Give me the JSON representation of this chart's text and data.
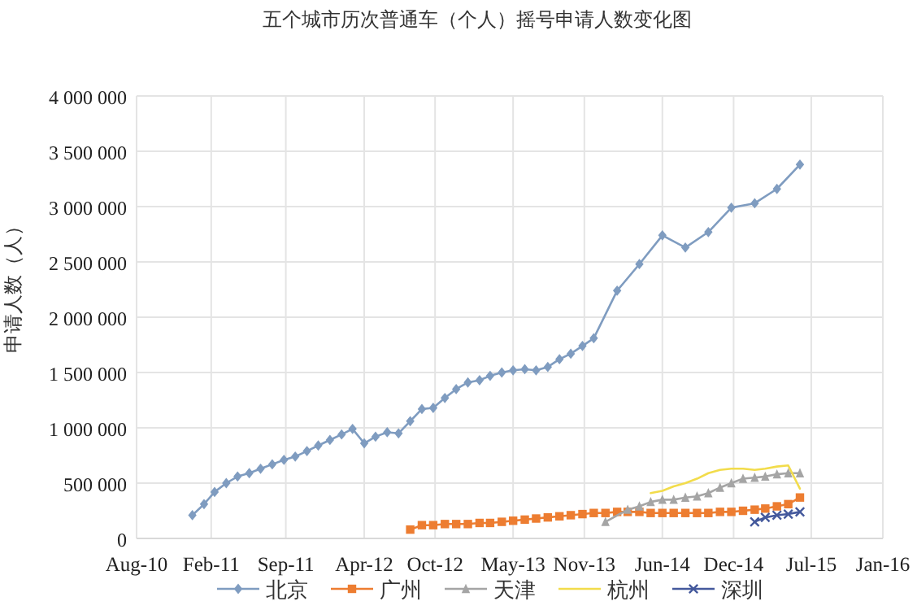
{
  "chart_data": {
    "type": "line",
    "title": "五个城市历次普通车（个人）摇号申请人数变化图",
    "ylabel": "申请人数（人）",
    "xlim": [
      "2010-08-06",
      "2016-01-07"
    ],
    "xticks": [
      {
        "value": "2010-08-06",
        "label": "Aug-10"
      },
      {
        "value": "2011-02-20",
        "label": "Feb-11"
      },
      {
        "value": "2011-09-06",
        "label": "Sep-11"
      },
      {
        "value": "2012-04-01",
        "label": "Apr-12"
      },
      {
        "value": "2012-10-06",
        "label": "Oct-12"
      },
      {
        "value": "2013-05-01",
        "label": "May-13"
      },
      {
        "value": "2013-11-06",
        "label": "Nov-13"
      },
      {
        "value": "2014-06-01",
        "label": "Jun-14"
      },
      {
        "value": "2014-12-07",
        "label": "Dec-14"
      },
      {
        "value": "2015-07-01",
        "label": "Jul-15"
      },
      {
        "value": "2016-01-07",
        "label": "Jan-16"
      }
    ],
    "ylim": [
      0,
      4000000
    ],
    "yticks": [
      0,
      {
        "value": 500000,
        "label": "500 000"
      },
      {
        "value": 1000000,
        "label": "1 000 000"
      },
      {
        "value": 1500000,
        "label": "1 500 000"
      },
      {
        "value": 2000000,
        "label": "2 000 000"
      },
      {
        "value": 2500000,
        "label": "2 500 000"
      },
      {
        "value": 3000000,
        "label": "3 000 000"
      },
      {
        "value": 3500000,
        "label": "3 500 000"
      },
      {
        "value": 4000000,
        "label": "4 000 000"
      }
    ],
    "grid": true,
    "legend": "bottom",
    "series": [
      {
        "name": "北京",
        "color": "#7f9cc0",
        "marker": "diamond",
        "x": [
          "2011-01",
          "2011-02",
          "2011-03",
          "2011-04",
          "2011-05",
          "2011-06",
          "2011-07",
          "2011-08",
          "2011-09",
          "2011-10",
          "2011-11",
          "2011-12",
          "2012-01",
          "2012-02",
          "2012-03",
          "2012-04",
          "2012-05",
          "2012-06",
          "2012-07",
          "2012-08",
          "2012-09",
          "2012-10",
          "2012-11",
          "2012-12",
          "2013-01",
          "2013-02",
          "2013-03",
          "2013-04",
          "2013-05",
          "2013-06",
          "2013-07",
          "2013-08",
          "2013-09",
          "2013-10",
          "2013-11",
          "2013-12",
          "2014-02",
          "2014-04",
          "2014-06",
          "2014-08",
          "2014-10",
          "2014-12",
          "2015-02",
          "2015-04",
          "2015-06"
        ],
        "values": [
          210000,
          310000,
          420000,
          500000,
          560000,
          590000,
          630000,
          670000,
          710000,
          740000,
          790000,
          840000,
          890000,
          940000,
          990000,
          860000,
          920000,
          960000,
          950000,
          1060000,
          1170000,
          1180000,
          1270000,
          1350000,
          1410000,
          1430000,
          1470000,
          1500000,
          1520000,
          1530000,
          1520000,
          1550000,
          1620000,
          1670000,
          1740000,
          1810000,
          2240000,
          2480000,
          2740000,
          2630000,
          2770000,
          2990000,
          3030000,
          3160000,
          3380000
        ]
      },
      {
        "name": "广州",
        "color": "#ed7d31",
        "marker": "square",
        "x": [
          "2012-08",
          "2012-09",
          "2012-10",
          "2012-11",
          "2012-12",
          "2013-01",
          "2013-02",
          "2013-03",
          "2013-04",
          "2013-05",
          "2013-06",
          "2013-07",
          "2013-08",
          "2013-09",
          "2013-10",
          "2013-11",
          "2013-12",
          "2014-01",
          "2014-02",
          "2014-03",
          "2014-04",
          "2014-05",
          "2014-06",
          "2014-07",
          "2014-08",
          "2014-09",
          "2014-10",
          "2014-11",
          "2014-12",
          "2015-01",
          "2015-02",
          "2015-03",
          "2015-04",
          "2015-05",
          "2015-06"
        ],
        "values": [
          80000,
          120000,
          120000,
          130000,
          130000,
          130000,
          140000,
          140000,
          150000,
          160000,
          170000,
          180000,
          190000,
          200000,
          210000,
          220000,
          230000,
          230000,
          240000,
          240000,
          240000,
          230000,
          230000,
          230000,
          230000,
          230000,
          230000,
          240000,
          240000,
          250000,
          260000,
          270000,
          290000,
          310000,
          370000
        ]
      },
      {
        "name": "天津",
        "color": "#a5a5a5",
        "marker": "triangle",
        "x": [
          "2014-01",
          "2014-03",
          "2014-04",
          "2014-05",
          "2014-06",
          "2014-07",
          "2014-08",
          "2014-09",
          "2014-10",
          "2014-11",
          "2014-12",
          "2015-01",
          "2015-02",
          "2015-03",
          "2015-04",
          "2015-05",
          "2015-06"
        ],
        "values": [
          150000,
          260000,
          290000,
          330000,
          350000,
          350000,
          370000,
          380000,
          410000,
          460000,
          500000,
          540000,
          550000,
          560000,
          580000,
          590000,
          590000
        ]
      },
      {
        "name": "杭州",
        "color": "#f2dc4b",
        "marker": "none",
        "x": [
          "2014-05",
          "2014-06",
          "2014-07",
          "2014-08",
          "2014-09",
          "2014-10",
          "2014-11",
          "2014-12",
          "2015-01",
          "2015-02",
          "2015-03",
          "2015-04",
          "2015-05",
          "2015-06"
        ],
        "values": [
          410000,
          430000,
          470000,
          500000,
          540000,
          590000,
          620000,
          630000,
          630000,
          620000,
          630000,
          650000,
          660000,
          450000
        ]
      },
      {
        "name": "深圳",
        "color": "#44599c",
        "marker": "cross",
        "x": [
          "2015-02",
          "2015-03",
          "2015-04",
          "2015-05",
          "2015-06"
        ],
        "values": [
          150000,
          190000,
          210000,
          220000,
          240000
        ]
      }
    ]
  }
}
